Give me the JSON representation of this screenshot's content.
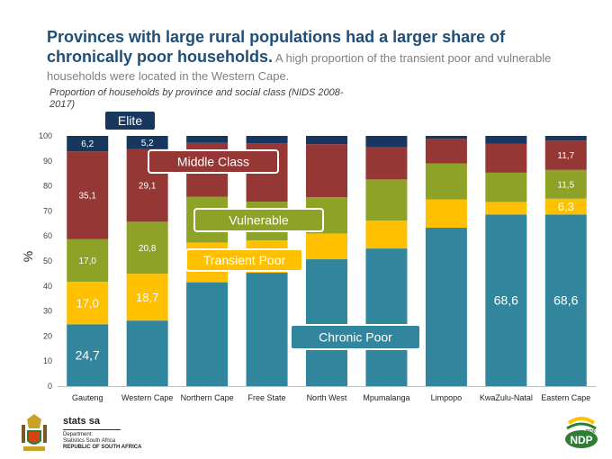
{
  "header": {
    "title": "Provinces with large rural populations had a larger share of chronically poor households.",
    "subtitle": " A high proportion of the transient poor and vulnerable households were located in the Western Cape."
  },
  "chart_caption": "Proportion of households by province and social class (NIDS 2008-2017)",
  "chart_data": {
    "type": "bar",
    "stacked": true,
    "title": "Proportion of households by province and social class (NIDS 2008-2017)",
    "xlabel": "",
    "ylabel": "%",
    "ylim": [
      0,
      100
    ],
    "yticks": [
      0,
      10,
      20,
      30,
      40,
      50,
      60,
      70,
      80,
      90,
      100
    ],
    "grid": false,
    "categories": [
      "Gauteng",
      "Western Cape",
      "Northern Cape",
      "Free State",
      "North West",
      "Mpumalanga",
      "Limpopo",
      "KwaZulu-Natal",
      "Eastern Cape"
    ],
    "series": [
      {
        "name": "Chronic Poor",
        "color": "#31859c",
        "label_color": "#ffffff",
        "label_size": 14,
        "values": [
          24.7,
          26.2,
          41.5,
          45.3,
          50.7,
          55.0,
          63.3,
          68.6,
          68.6
        ],
        "labels": [
          "24,7",
          null,
          null,
          null,
          null,
          null,
          null,
          "68,6",
          "68,6"
        ]
      },
      {
        "name": "Transient Poor",
        "color": "#ffc000",
        "label_color": "#ffffff",
        "label_size": 13,
        "values": [
          17.0,
          18.7,
          15.9,
          12.9,
          10.3,
          11.1,
          11.3,
          5.0,
          6.3
        ],
        "labels": [
          "17,0",
          "18,7",
          null,
          null,
          null,
          null,
          null,
          null,
          "6,3"
        ]
      },
      {
        "name": "Vulnerable",
        "color": "#8fa228",
        "label_color": "#ffffff",
        "label_size": 10,
        "values": [
          17.0,
          20.8,
          18.3,
          15.5,
          14.5,
          16.5,
          14.4,
          11.7,
          11.5
        ],
        "labels": [
          "17,0",
          "20,8",
          null,
          null,
          null,
          null,
          null,
          null,
          "11,5"
        ]
      },
      {
        "name": "Middle Class",
        "color": "#953735",
        "label_color": "#ffffff",
        "label_size": 10,
        "values": [
          35.1,
          29.1,
          21.5,
          23.3,
          21.2,
          12.8,
          9.8,
          11.5,
          11.7
        ],
        "labels": [
          "35,1",
          "29,1",
          null,
          null,
          null,
          null,
          null,
          null,
          "11,7"
        ]
      },
      {
        "name": "Elite",
        "color": "#17375e",
        "label_color": "#ffffff",
        "label_size": 10,
        "values": [
          6.2,
          5.2,
          2.8,
          3.0,
          3.3,
          4.6,
          1.2,
          3.2,
          1.9
        ],
        "labels": [
          "6,2",
          "5,2",
          null,
          null,
          null,
          null,
          null,
          null,
          null
        ]
      }
    ],
    "legend_callouts": [
      {
        "name": "Elite",
        "border": "#17375e",
        "fill": "#17375e",
        "text_color": "#ffffff"
      },
      {
        "name": "Middle Class",
        "border": "#953735",
        "fill": "#953735",
        "text_color": "#ffffff"
      },
      {
        "name": "Vulnerable",
        "border": "#8fa228",
        "fill": "#8fa228",
        "text_color": "#ffffff"
      },
      {
        "name": "Transient Poor",
        "border": "#ffc000",
        "fill": "#ffc000",
        "text_color": "#ffffff"
      },
      {
        "name": "Chronic Poor",
        "border": "#31859c",
        "fill": "#31859c",
        "text_color": "#ffffff"
      }
    ]
  },
  "footer": {
    "org_name": "stats sa",
    "dept_label": "Department:",
    "dept_name": "Statistics South Africa",
    "country": "REPUBLIC OF SOUTH AFRICA",
    "ndp_logo_text": "NDP",
    "ndp_logo_year": "2030"
  }
}
